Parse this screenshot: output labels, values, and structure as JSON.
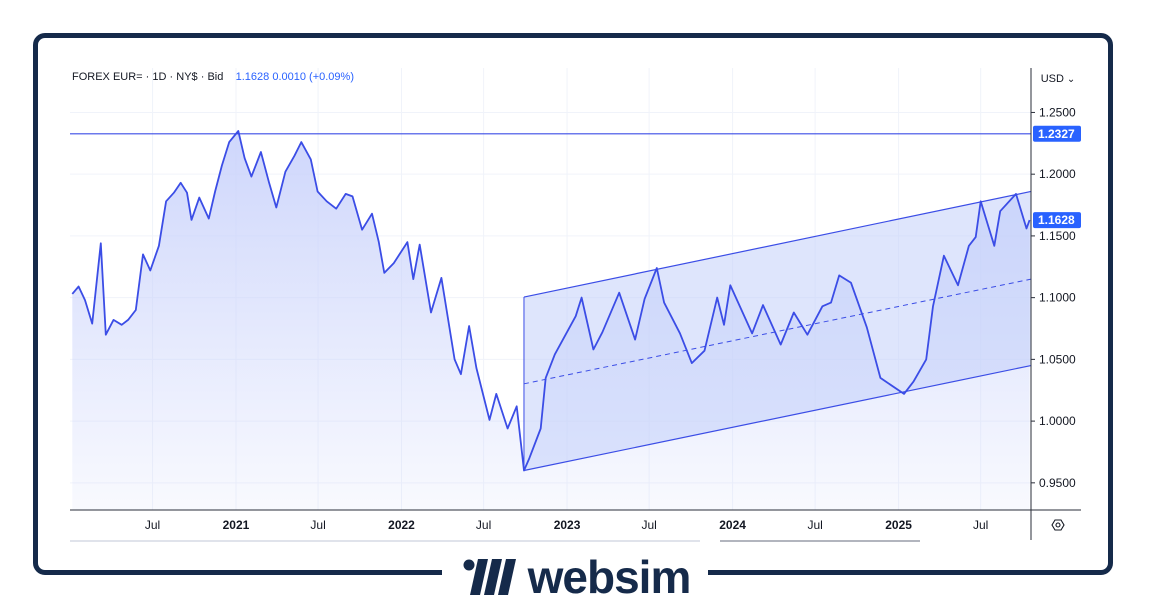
{
  "legend": {
    "symbol": "FOREX EUR=",
    "interval": "1D",
    "source": "NY$",
    "price_type": "Bid",
    "sep": "·",
    "last": "1.1628",
    "change": "0.0010",
    "change_pct": "(+0.09%)"
  },
  "currency": {
    "label": "USD",
    "chevron": "⌄"
  },
  "brand": {
    "name": "websim"
  },
  "colors": {
    "line": "#3b4de6",
    "fill": "#c9d2fb",
    "channel_fill": "#c2d0fa",
    "frame": "#152a4a",
    "label_bg": "#2962ff",
    "grid": "#f0f3fa"
  },
  "chart_data": {
    "type": "area",
    "title": "",
    "xlabel": "",
    "ylabel": "",
    "ylim": [
      0.928,
      1.286
    ],
    "y_ticks": [
      "1.2500",
      "1.2000",
      "1.1500",
      "1.1000",
      "1.0500",
      "1.0000",
      "0.9500"
    ],
    "y_tick_values": [
      1.25,
      1.2,
      1.15,
      1.1,
      1.05,
      1.0,
      0.95
    ],
    "x_ticks": [
      {
        "label": "Jul",
        "date": "2020-07-01",
        "bold": false
      },
      {
        "label": "2021",
        "date": "2021-01-01",
        "bold": true
      },
      {
        "label": "Jul",
        "date": "2021-07-01",
        "bold": false
      },
      {
        "label": "2022",
        "date": "2022-01-01",
        "bold": true
      },
      {
        "label": "Jul",
        "date": "2022-07-01",
        "bold": false
      },
      {
        "label": "2023",
        "date": "2023-01-01",
        "bold": true
      },
      {
        "label": "Jul",
        "date": "2023-07-01",
        "bold": false
      },
      {
        "label": "2024",
        "date": "2024-01-01",
        "bold": true
      },
      {
        "label": "Jul",
        "date": "2024-07-01",
        "bold": false
      },
      {
        "label": "2025",
        "date": "2025-01-01",
        "bold": true
      },
      {
        "label": "Jul",
        "date": "2025-07-01",
        "bold": false
      }
    ],
    "x_range": [
      "2020-01-01",
      "2025-10-20"
    ],
    "grid": true,
    "series": [
      {
        "points": [
          [
            "2020-01-06",
            1.103
          ],
          [
            "2020-01-20",
            1.109
          ],
          [
            "2020-02-03",
            1.098
          ],
          [
            "2020-02-19",
            1.079
          ],
          [
            "2020-03-09",
            1.144
          ],
          [
            "2020-03-20",
            1.07
          ],
          [
            "2020-04-06",
            1.082
          ],
          [
            "2020-04-24",
            1.078
          ],
          [
            "2020-05-08",
            1.082
          ],
          [
            "2020-05-25",
            1.09
          ],
          [
            "2020-06-10",
            1.135
          ],
          [
            "2020-06-26",
            1.122
          ],
          [
            "2020-07-15",
            1.142
          ],
          [
            "2020-07-31",
            1.178
          ],
          [
            "2020-08-17",
            1.185
          ],
          [
            "2020-09-01",
            1.193
          ],
          [
            "2020-09-15",
            1.185
          ],
          [
            "2020-09-25",
            1.163
          ],
          [
            "2020-10-12",
            1.181
          ],
          [
            "2020-11-02",
            1.164
          ],
          [
            "2020-11-16",
            1.186
          ],
          [
            "2020-12-01",
            1.207
          ],
          [
            "2020-12-17",
            1.226
          ],
          [
            "2021-01-06",
            1.235
          ],
          [
            "2021-01-20",
            1.213
          ],
          [
            "2021-02-04",
            1.198
          ],
          [
            "2021-02-25",
            1.218
          ],
          [
            "2021-03-15",
            1.193
          ],
          [
            "2021-03-31",
            1.173
          ],
          [
            "2021-04-20",
            1.202
          ],
          [
            "2021-05-10",
            1.215
          ],
          [
            "2021-05-25",
            1.226
          ],
          [
            "2021-06-15",
            1.212
          ],
          [
            "2021-06-30",
            1.186
          ],
          [
            "2021-07-20",
            1.178
          ],
          [
            "2021-08-10",
            1.172
          ],
          [
            "2021-08-31",
            1.184
          ],
          [
            "2021-09-15",
            1.182
          ],
          [
            "2021-10-06",
            1.155
          ],
          [
            "2021-10-28",
            1.168
          ],
          [
            "2021-11-12",
            1.145
          ],
          [
            "2021-11-24",
            1.12
          ],
          [
            "2021-12-15",
            1.128
          ],
          [
            "2022-01-14",
            1.145
          ],
          [
            "2022-01-27",
            1.115
          ],
          [
            "2022-02-10",
            1.143
          ],
          [
            "2022-03-07",
            1.088
          ],
          [
            "2022-03-30",
            1.116
          ],
          [
            "2022-04-28",
            1.05
          ],
          [
            "2022-05-12",
            1.038
          ],
          [
            "2022-05-30",
            1.077
          ],
          [
            "2022-06-15",
            1.043
          ],
          [
            "2022-07-14",
            1.001
          ],
          [
            "2022-07-29",
            1.022
          ],
          [
            "2022-08-23",
            0.994
          ],
          [
            "2022-09-12",
            1.012
          ],
          [
            "2022-09-28",
            0.96
          ],
          [
            "2022-10-10",
            0.97
          ],
          [
            "2022-11-04",
            0.994
          ],
          [
            "2022-11-15",
            1.035
          ],
          [
            "2022-12-05",
            1.054
          ],
          [
            "2023-01-20",
            1.085
          ],
          [
            "2023-02-02",
            1.1
          ],
          [
            "2023-02-28",
            1.058
          ],
          [
            "2023-03-20",
            1.072
          ],
          [
            "2023-04-26",
            1.104
          ],
          [
            "2023-05-31",
            1.066
          ],
          [
            "2023-06-21",
            1.099
          ],
          [
            "2023-07-18",
            1.124
          ],
          [
            "2023-08-03",
            1.096
          ],
          [
            "2023-09-07",
            1.071
          ],
          [
            "2023-10-03",
            1.047
          ],
          [
            "2023-10-31",
            1.057
          ],
          [
            "2023-11-28",
            1.1
          ],
          [
            "2023-12-13",
            1.078
          ],
          [
            "2023-12-27",
            1.11
          ],
          [
            "2024-02-13",
            1.071
          ],
          [
            "2024-03-08",
            1.094
          ],
          [
            "2024-04-16",
            1.062
          ],
          [
            "2024-05-15",
            1.088
          ],
          [
            "2024-06-14",
            1.07
          ],
          [
            "2024-07-17",
            1.093
          ],
          [
            "2024-08-05",
            1.096
          ],
          [
            "2024-08-23",
            1.118
          ],
          [
            "2024-09-18",
            1.112
          ],
          [
            "2024-10-23",
            1.076
          ],
          [
            "2024-11-22",
            1.035
          ],
          [
            "2025-01-13",
            1.022
          ],
          [
            "2025-02-03",
            1.032
          ],
          [
            "2025-03-03",
            1.05
          ],
          [
            "2025-03-18",
            1.093
          ],
          [
            "2025-04-11",
            1.134
          ],
          [
            "2025-05-12",
            1.11
          ],
          [
            "2025-06-05",
            1.142
          ],
          [
            "2025-06-20",
            1.149
          ],
          [
            "2025-07-01",
            1.178
          ],
          [
            "2025-07-16",
            1.16
          ],
          [
            "2025-07-31",
            1.142
          ],
          [
            "2025-08-13",
            1.17
          ],
          [
            "2025-09-17",
            1.184
          ],
          [
            "2025-10-10",
            1.156
          ],
          [
            "2025-10-17",
            1.1628
          ]
        ]
      }
    ],
    "horizontal_level": {
      "value": 1.2327,
      "label": "1.2327"
    },
    "last_price": {
      "value": 1.1628,
      "label": "1.1628"
    },
    "channel": {
      "start_date": "2022-09-28",
      "end_date": "2025-10-20",
      "upper": [
        1.1005,
        1.186
      ],
      "middle": [
        1.0302,
        1.115
      ],
      "lower": [
        0.96,
        1.045
      ]
    }
  }
}
